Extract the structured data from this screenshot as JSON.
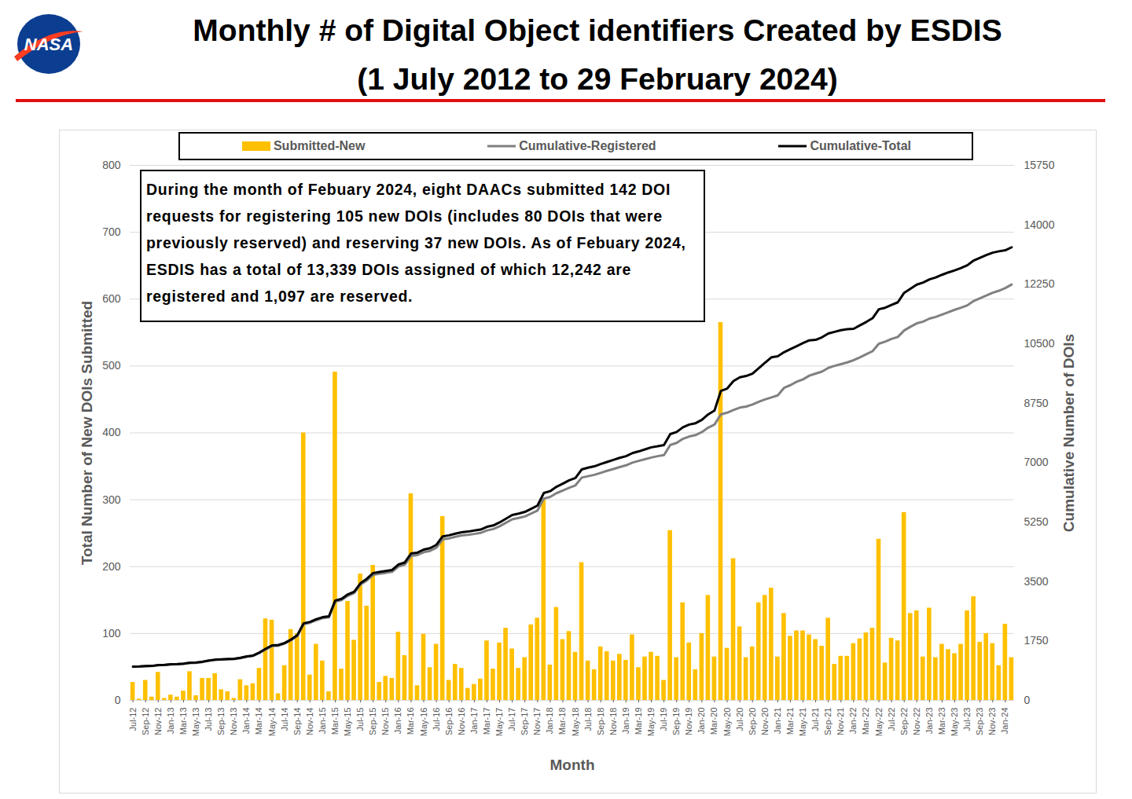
{
  "chart_data": {
    "type": "bar",
    "title": "Monthly # of Digital Object identifiers Created by ESDIS",
    "subtitle": "(1 July 2012 to 29 February 2024)",
    "logo_text": "NASA",
    "annotation": "During the month of Febuary 2024, eight DAACs submitted 142 DOI requests for registering 105 new DOIs (includes 80 DOIs that were previously reserved) and reserving 37 new DOIs.  As of Febuary 2024, ESDIS has a total of 13,339 DOIs assigned of which 12,242 are registered and 1,097 are reserved.",
    "x_label": "Month",
    "y_label": "Total Number of New DOIs Submitted",
    "y2_label": "Cumulative Number of DOIs",
    "categories": [
      "Jul-12",
      null,
      "Sep-12",
      null,
      "Nov-12",
      null,
      "Jan-13",
      null,
      "Mar-13",
      null,
      "May-13",
      null,
      "Jul-13",
      null,
      "Sep-13",
      null,
      "Nov-13",
      null,
      "Jan-14",
      null,
      "Mar-14",
      null,
      "May-14",
      null,
      "Jul-14",
      null,
      "Sep-14",
      null,
      "Nov-14",
      null,
      "Jan-15",
      null,
      "Mar-15",
      null,
      "May-15",
      null,
      "Jul-15",
      null,
      "Sep-15",
      null,
      "Nov-15",
      null,
      "Jan-16",
      null,
      "Mar-16",
      null,
      "May-16",
      null,
      "Jul-16",
      null,
      "Sep-16",
      null,
      "Nov-16",
      null,
      "Jan-17",
      null,
      "Mar-17",
      null,
      "May-17",
      null,
      "Jul-17",
      null,
      "Sep-17",
      null,
      "Nov-17",
      null,
      "Jan-18",
      null,
      "Mar-18",
      null,
      "May-18",
      null,
      "Jul-18",
      null,
      "Sep-18",
      null,
      "Nov-18",
      null,
      "Jan-19",
      null,
      "Mar-19",
      null,
      "May-19",
      null,
      "Jul-19",
      null,
      "Sep-19",
      null,
      "Nov-19",
      null,
      "Jan-20",
      null,
      "Mar-20",
      null,
      "May-20",
      null,
      "Jul-20",
      null,
      "Sep-20",
      null,
      "Nov-20",
      null,
      "Jan-21",
      null,
      "Mar-21",
      null,
      "May-21",
      null,
      "Jul-21",
      null,
      "Sep-21",
      null,
      "Nov-21",
      null,
      "Jan-22",
      null,
      "Mar-22",
      null,
      "May-22",
      null,
      "Jul-22",
      null,
      "Sep-22",
      null,
      "Nov-22",
      null,
      "Jan-23",
      null,
      "Mar-23",
      null,
      "May-23",
      null,
      "Jul-23",
      null,
      "Sep-23",
      null,
      "Nov-23",
      null,
      "Jan-24",
      null
    ],
    "series": [
      {
        "name": "Submitted-New",
        "type": "bar",
        "color": "#FFC000",
        "values": [
          27,
          2,
          30,
          5,
          42,
          3,
          8,
          5,
          14,
          43,
          7,
          33,
          33,
          40,
          16,
          13,
          3,
          31,
          22,
          25,
          48,
          122,
          120,
          10,
          52,
          106,
          100,
          400,
          38,
          84,
          59,
          13,
          491,
          47,
          148,
          90,
          189,
          141,
          202,
          27,
          36,
          33,
          102,
          67,
          309,
          22,
          99,
          49,
          84,
          275,
          30,
          54,
          48,
          18,
          24,
          32,
          89,
          47,
          86,
          108,
          77,
          48,
          64,
          113,
          123,
          300,
          53,
          139,
          91,
          103,
          72,
          206,
          59,
          46,
          80,
          73,
          59,
          69,
          60,
          98,
          49,
          65,
          72,
          66,
          30,
          254,
          64,
          146,
          86,
          46,
          100,
          157,
          65,
          565,
          78,
          212,
          110,
          64,
          80,
          146,
          157,
          168,
          65,
          130,
          96,
          104,
          104,
          98,
          91,
          81,
          123,
          54,
          66,
          66,
          85,
          92,
          101,
          108,
          241,
          56,
          93,
          89,
          281,
          130,
          134,
          65,
          138,
          64,
          84,
          76,
          70,
          84,
          134,
          155,
          87,
          100,
          85,
          52,
          114,
          64
        ]
      },
      {
        "name": "Cumulative-Registered",
        "type": "line",
        "color": "#808080",
        "axis": "y2",
        "values": [
          990,
          995,
          1005,
          1010,
          1035,
          1040,
          1060,
          1065,
          1075,
          1100,
          1105,
          1130,
          1165,
          1190,
          1200,
          1210,
          1215,
          1245,
          1285,
          1310,
          1395,
          1500,
          1600,
          1610,
          1670,
          1770,
          1895,
          2245,
          2285,
          2360,
          2420,
          2445,
          2905,
          2955,
          3080,
          3160,
          3410,
          3530,
          3700,
          3730,
          3755,
          3785,
          3940,
          3995,
          4255,
          4280,
          4365,
          4400,
          4495,
          4740,
          4770,
          4815,
          4855,
          4875,
          4900,
          4930,
          5005,
          5045,
          5125,
          5230,
          5330,
          5370,
          5415,
          5500,
          5590,
          5940,
          5990,
          6100,
          6180,
          6260,
          6330,
          6560,
          6600,
          6640,
          6700,
          6760,
          6810,
          6870,
          6920,
          7000,
          7050,
          7100,
          7150,
          7190,
          7220,
          7520,
          7580,
          7700,
          7770,
          7810,
          7900,
          8030,
          8120,
          8420,
          8470,
          8550,
          8620,
          8650,
          8710,
          8790,
          8860,
          8920,
          8980,
          9200,
          9280,
          9380,
          9450,
          9560,
          9620,
          9680,
          9790,
          9850,
          9900,
          9950,
          10015,
          10100,
          10190,
          10280,
          10500,
          10560,
          10640,
          10700,
          10890,
          11000,
          11100,
          11150,
          11240,
          11290,
          11360,
          11430,
          11500,
          11560,
          11630,
          11760,
          11840,
          11920,
          12000,
          12060,
          12140,
          12242
        ]
      },
      {
        "name": "Cumulative-Total",
        "type": "line",
        "color": "#000000",
        "axis": "y2",
        "values": [
          995,
          1000,
          1010,
          1015,
          1040,
          1045,
          1065,
          1070,
          1080,
          1110,
          1115,
          1140,
          1175,
          1200,
          1210,
          1220,
          1225,
          1255,
          1295,
          1320,
          1410,
          1520,
          1620,
          1630,
          1690,
          1790,
          1920,
          2270,
          2310,
          2390,
          2450,
          2475,
          2940,
          2990,
          3120,
          3200,
          3450,
          3580,
          3750,
          3780,
          3810,
          3840,
          4000,
          4060,
          4325,
          4350,
          4440,
          4480,
          4580,
          4830,
          4860,
          4910,
          4950,
          4970,
          5000,
          5030,
          5110,
          5150,
          5240,
          5350,
          5460,
          5500,
          5550,
          5640,
          5735,
          6105,
          6160,
          6290,
          6380,
          6480,
          6550,
          6800,
          6850,
          6890,
          6960,
          7020,
          7080,
          7140,
          7190,
          7280,
          7330,
          7390,
          7450,
          7480,
          7515,
          7840,
          7900,
          8040,
          8120,
          8160,
          8260,
          8420,
          8535,
          9110,
          9180,
          9400,
          9510,
          9550,
          9620,
          9780,
          9940,
          10100,
          10130,
          10250,
          10340,
          10430,
          10520,
          10600,
          10615,
          10690,
          10800,
          10850,
          10900,
          10930,
          10940,
          11040,
          11140,
          11250,
          11515,
          11560,
          11640,
          11720,
          12000,
          12120,
          12240,
          12300,
          12395,
          12450,
          12530,
          12600,
          12660,
          12730,
          12810,
          12950,
          13030,
          13110,
          13180,
          13220,
          13250,
          13339
        ]
      }
    ],
    "ylim": [
      0,
      800
    ],
    "yticks": [
      0,
      100,
      200,
      300,
      400,
      500,
      600,
      700,
      800
    ],
    "y2lim": [
      0,
      15750
    ],
    "y2ticks": [
      0,
      1750,
      3500,
      5250,
      7000,
      8750,
      10500,
      12250,
      14000,
      15750
    ],
    "grid": true
  }
}
